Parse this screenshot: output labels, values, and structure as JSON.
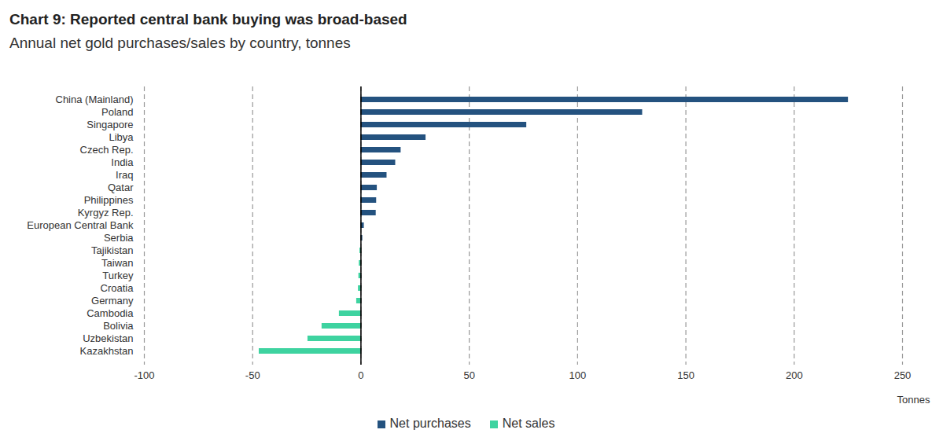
{
  "chart_data": {
    "type": "bar",
    "orientation": "horizontal",
    "title": "Chart 9: Reported central bank buying was broad-based",
    "subtitle": "Annual net gold purchases/sales by country, tonnes",
    "x_label": "Tonnes",
    "categories": [
      "China (Mainland)",
      "Poland",
      "Singapore",
      "Libya",
      "Czech Rep.",
      "India",
      "Iraq",
      "Qatar",
      "Philippines",
      "Kyrgyz Rep.",
      "European Central Bank",
      "Serbia",
      "Tajikistan",
      "Taiwan",
      "Turkey",
      "Croatia",
      "Germany",
      "Cambodia",
      "Bolivia",
      "Uzbekistan",
      "Kazakhstan"
    ],
    "series": [
      {
        "name": "Net purchases",
        "color": "#24527f",
        "values": [
          225,
          130,
          76.5,
          30,
          18.5,
          16,
          12,
          7.5,
          7.2,
          7,
          1.5,
          0.8,
          null,
          null,
          null,
          null,
          null,
          null,
          null,
          null,
          null
        ]
      },
      {
        "name": "Net sales",
        "color": "#3ed3a0",
        "values": [
          null,
          null,
          null,
          null,
          null,
          null,
          null,
          null,
          null,
          null,
          null,
          null,
          -0.5,
          -0.8,
          -1,
          -1.2,
          -2,
          -10,
          -18,
          -24.5,
          -47
        ]
      }
    ],
    "xlim": [
      -100,
      250
    ],
    "xticks": [
      -100,
      -50,
      0,
      50,
      100,
      150,
      200,
      250
    ],
    "grid": true,
    "legend": "bottom"
  }
}
